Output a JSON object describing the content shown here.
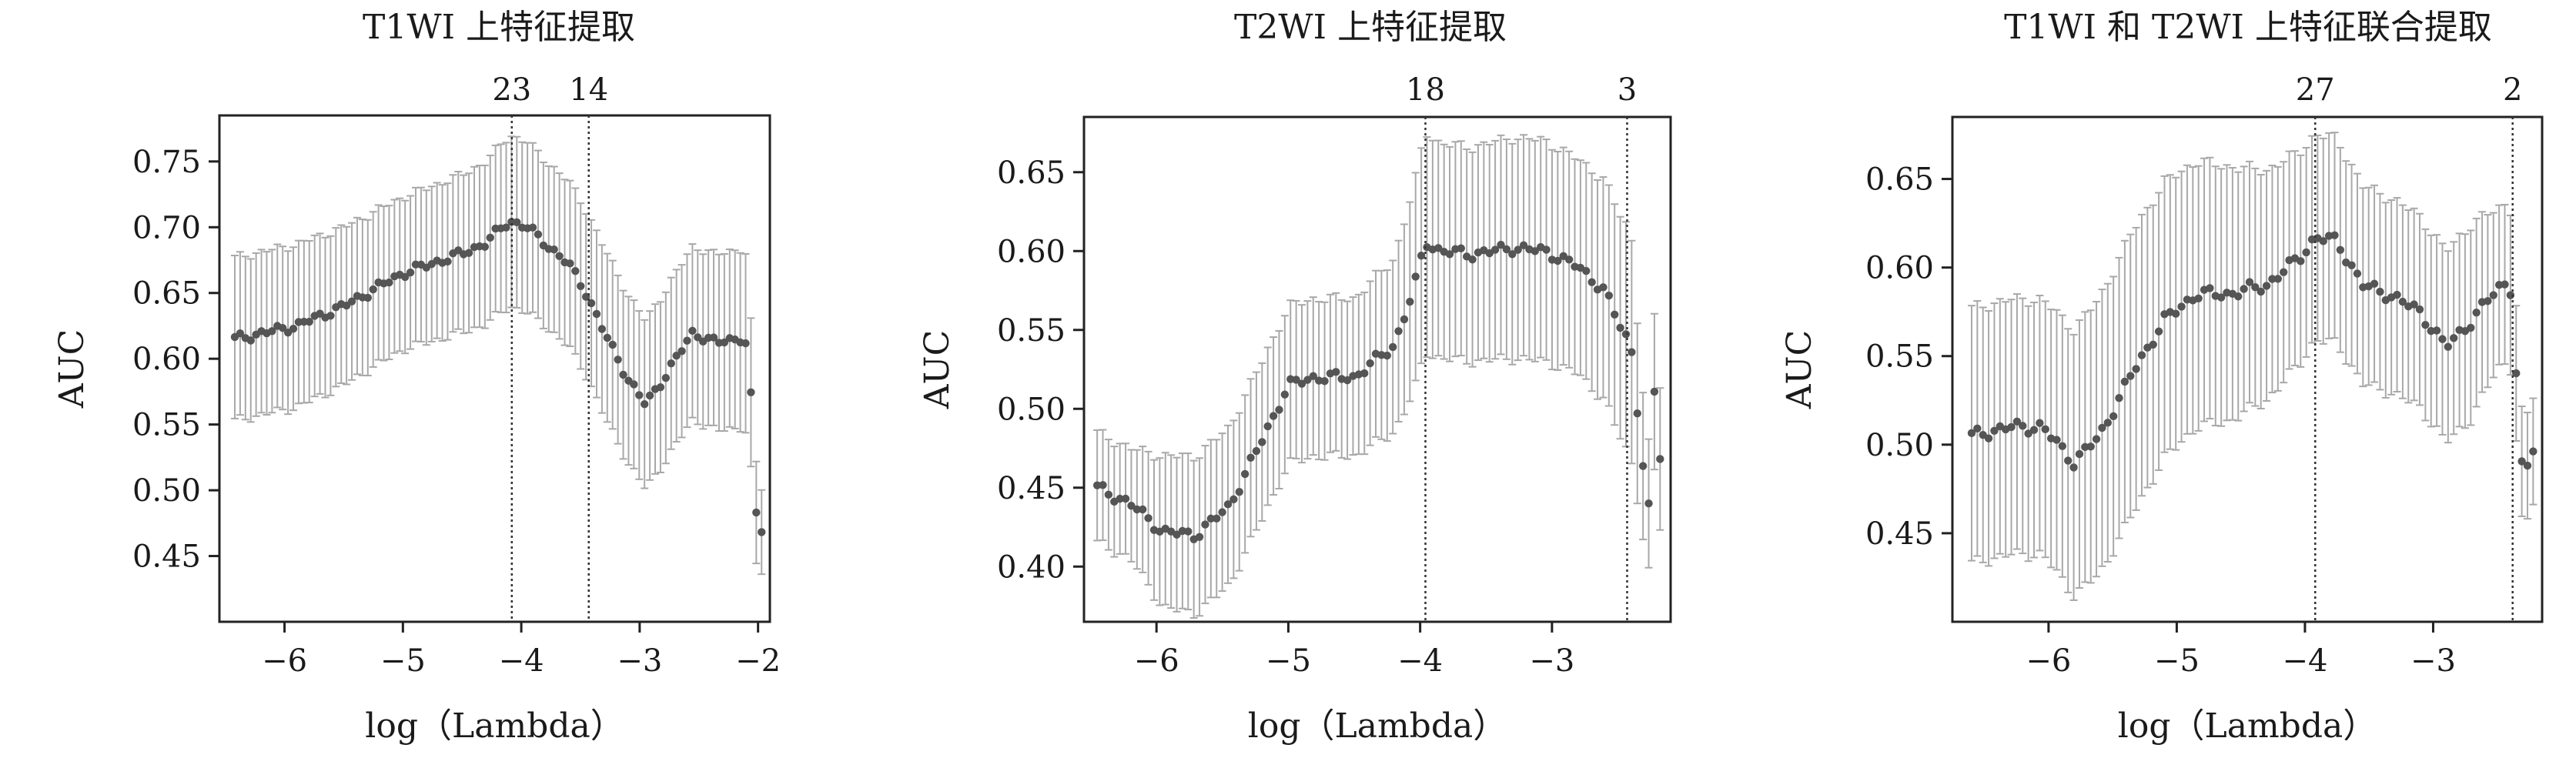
{
  "chart_data": [
    {
      "type": "scatter",
      "title": "T1WI 上特征提取",
      "xlabel": "log（Lambda）",
      "ylabel": "AUC",
      "xlim": [
        -6.55,
        -1.9
      ],
      "ylim": [
        0.4,
        0.785
      ],
      "xticks": [
        -6,
        -5,
        -4,
        -3,
        -2
      ],
      "xtick_labels": [
        "−6",
        "−5",
        "−4",
        "−3",
        "−2"
      ],
      "yticks": [
        0.45,
        0.5,
        0.55,
        0.6,
        0.65,
        0.7,
        0.75
      ],
      "ytick_labels": [
        "0.45",
        "0.50",
        "0.55",
        "0.60",
        "0.65",
        "0.70",
        "0.75"
      ],
      "vlines": [
        {
          "x": -4.08,
          "label": "23"
        },
        {
          "x": -3.43,
          "label": "14"
        }
      ],
      "grid": false,
      "x_start": -6.42,
      "x_end": -1.97,
      "key_x": [
        -6.42,
        -5.9,
        -5.5,
        -5.0,
        -4.5,
        -4.3,
        -4.1,
        -3.95,
        -3.8,
        -3.6,
        -3.45,
        -3.3,
        -3.1,
        -2.95,
        -2.8,
        -2.55,
        -2.35,
        -2.15,
        -2.08,
        -2.04,
        -2.0,
        -1.97
      ],
      "key_y": [
        0.615,
        0.625,
        0.64,
        0.665,
        0.68,
        0.688,
        0.705,
        0.7,
        0.688,
        0.672,
        0.65,
        0.62,
        0.585,
        0.565,
        0.585,
        0.62,
        0.612,
        0.616,
        0.61,
        0.532,
        0.452,
        0.47
      ],
      "key_err": [
        0.062,
        0.062,
        0.06,
        0.058,
        0.06,
        0.062,
        0.065,
        0.065,
        0.063,
        0.063,
        0.063,
        0.064,
        0.064,
        0.064,
        0.065,
        0.066,
        0.067,
        0.068,
        0.068,
        0.045,
        0.035,
        0.032
      ]
    },
    {
      "type": "scatter",
      "title": "T2WI 上特征提取",
      "xlabel": "log（Lambda）",
      "ylabel": "AUC",
      "xlim": [
        -6.55,
        -2.1
      ],
      "ylim": [
        0.365,
        0.685
      ],
      "xticks": [
        -6,
        -5,
        -4,
        -3
      ],
      "xtick_labels": [
        "−6",
        "−5",
        "−4",
        "−3"
      ],
      "yticks": [
        0.4,
        0.45,
        0.5,
        0.55,
        0.6,
        0.65
      ],
      "ytick_labels": [
        "0.40",
        "0.45",
        "0.50",
        "0.55",
        "0.60",
        "0.65"
      ],
      "vlines": [
        {
          "x": -3.96,
          "label": "18"
        },
        {
          "x": -2.43,
          "label": "3"
        }
      ],
      "grid": false,
      "x_start": -6.45,
      "x_end": -2.18,
      "key_x": [
        -6.45,
        -6.2,
        -5.95,
        -5.7,
        -5.45,
        -5.2,
        -5.0,
        -4.8,
        -4.5,
        -4.2,
        -4.05,
        -3.96,
        -3.85,
        -3.6,
        -3.3,
        -3.05,
        -2.8,
        -2.6,
        -2.5,
        -2.4,
        -2.33,
        -2.27,
        -2.22,
        -2.18
      ],
      "key_y": [
        0.45,
        0.44,
        0.422,
        0.42,
        0.438,
        0.48,
        0.515,
        0.52,
        0.52,
        0.54,
        0.575,
        0.606,
        0.6,
        0.598,
        0.602,
        0.6,
        0.59,
        0.575,
        0.555,
        0.54,
        0.482,
        0.43,
        0.515,
        0.47
      ],
      "key_err": [
        0.035,
        0.035,
        0.048,
        0.05,
        0.05,
        0.05,
        0.05,
        0.05,
        0.05,
        0.055,
        0.065,
        0.07,
        0.068,
        0.068,
        0.07,
        0.07,
        0.068,
        0.07,
        0.07,
        0.072,
        0.05,
        0.04,
        0.05,
        0.045
      ]
    },
    {
      "type": "scatter",
      "title": "T1WI 和 T2WI 上特征联合提取",
      "xlabel": "log（Lambda）",
      "ylabel": "AUC",
      "xlim": [
        -6.75,
        -2.15
      ],
      "ylim": [
        0.4,
        0.685
      ],
      "xticks": [
        -6,
        -5,
        -4,
        -3
      ],
      "xtick_labels": [
        "−6",
        "−5",
        "−4",
        "−3"
      ],
      "yticks": [
        0.45,
        0.5,
        0.55,
        0.6,
        0.65
      ],
      "ytick_labels": [
        "0.45",
        "0.50",
        "0.55",
        "0.60",
        "0.65"
      ],
      "vlines": [
        {
          "x": -3.92,
          "label": "27"
        },
        {
          "x": -2.38,
          "label": "2"
        }
      ],
      "grid": false,
      "x_start": -6.6,
      "x_end": -2.22,
      "key_x": [
        -6.6,
        -6.3,
        -6.05,
        -5.8,
        -5.6,
        -5.35,
        -5.1,
        -4.85,
        -4.6,
        -4.3,
        -4.05,
        -3.92,
        -3.75,
        -3.55,
        -3.35,
        -3.1,
        -2.9,
        -2.7,
        -2.5,
        -2.42,
        -2.38,
        -2.34,
        -2.3,
        -2.26,
        -2.22
      ],
      "key_y": [
        0.505,
        0.51,
        0.51,
        0.49,
        0.505,
        0.54,
        0.57,
        0.585,
        0.585,
        0.59,
        0.605,
        0.617,
        0.615,
        0.59,
        0.585,
        0.575,
        0.555,
        0.57,
        0.588,
        0.592,
        0.585,
        0.52,
        0.478,
        0.488,
        0.498
      ],
      "key_err": [
        0.072,
        0.072,
        0.072,
        0.075,
        0.078,
        0.08,
        0.078,
        0.075,
        0.072,
        0.065,
        0.06,
        0.058,
        0.058,
        0.056,
        0.055,
        0.054,
        0.054,
        0.055,
        0.045,
        0.045,
        0.045,
        0.035,
        0.03,
        0.03,
        0.03
      ]
    }
  ]
}
